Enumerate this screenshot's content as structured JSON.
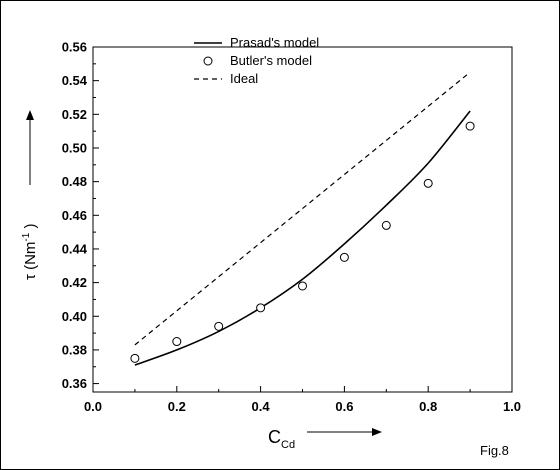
{
  "chart_data": {
    "type": "line",
    "xlim": [
      0.0,
      1.0
    ],
    "ylim": [
      0.355,
      0.56
    ],
    "x_ticks": [
      "0.0",
      "0.2",
      "0.4",
      "0.6",
      "0.8",
      "1.0"
    ],
    "y_ticks": [
      "0.36",
      "0.38",
      "0.40",
      "0.42",
      "0.44",
      "0.46",
      "0.48",
      "0.50",
      "0.52",
      "0.54",
      "0.56"
    ],
    "x_tick_values": [
      0.0,
      0.2,
      0.4,
      0.6,
      0.8,
      1.0
    ],
    "y_tick_values": [
      0.36,
      0.38,
      0.4,
      0.42,
      0.44,
      0.46,
      0.48,
      0.5,
      0.52,
      0.54,
      0.56
    ],
    "xlabel": {
      "main": "C",
      "sub": "Cd"
    },
    "ylabel": {
      "main": "τ (Nm",
      "sup": "-1",
      "close": " )"
    },
    "annotation": "Fig.8",
    "legend_position": "top-center",
    "series": [
      {
        "name": "Prasad's model",
        "style": "solid-line",
        "x": [
          0.1,
          0.2,
          0.3,
          0.4,
          0.5,
          0.6,
          0.7,
          0.8,
          0.9
        ],
        "y": [
          0.371,
          0.38,
          0.391,
          0.405,
          0.422,
          0.443,
          0.466,
          0.491,
          0.522
        ]
      },
      {
        "name": "Butler's model",
        "style": "open-circle",
        "x": [
          0.1,
          0.2,
          0.3,
          0.4,
          0.5,
          0.6,
          0.7,
          0.8,
          0.9
        ],
        "y": [
          0.375,
          0.385,
          0.394,
          0.405,
          0.418,
          0.435,
          0.454,
          0.479,
          0.513
        ]
      },
      {
        "name": "Ideal",
        "style": "dashed-line",
        "x": [
          0.1,
          0.9
        ],
        "y": [
          0.383,
          0.545
        ]
      }
    ]
  }
}
